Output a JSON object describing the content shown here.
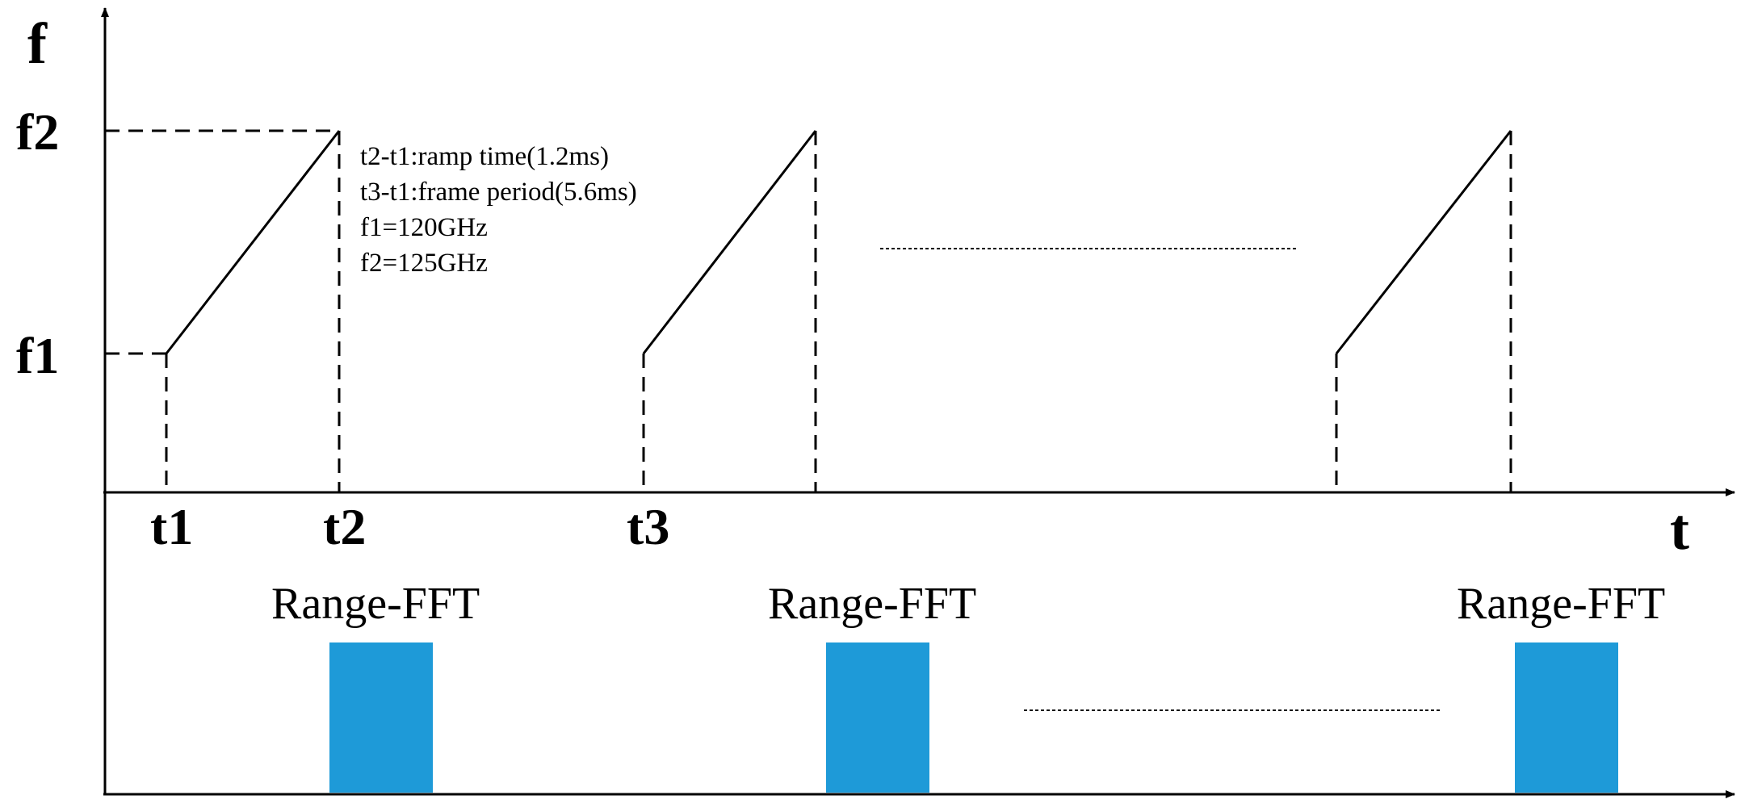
{
  "upper_axes": {
    "y_label": "f",
    "x_label": "t"
  },
  "frequency_levels": {
    "high": "f2",
    "low": "f1"
  },
  "time_marks": [
    "t1",
    "t2",
    "t3"
  ],
  "annotations": [
    "t2-t1:ramp time(1.2ms)",
    "t3-t1:frame period(5.6ms)",
    "f1=120GHz",
    "f2=125GHz"
  ],
  "chirp_count_shown": 3,
  "fft_blocks": [
    "Range-FFT",
    "Range-FFT",
    "Range-FFT"
  ],
  "colors": {
    "fft_block": "#1e9ad8",
    "line": "#000000"
  }
}
